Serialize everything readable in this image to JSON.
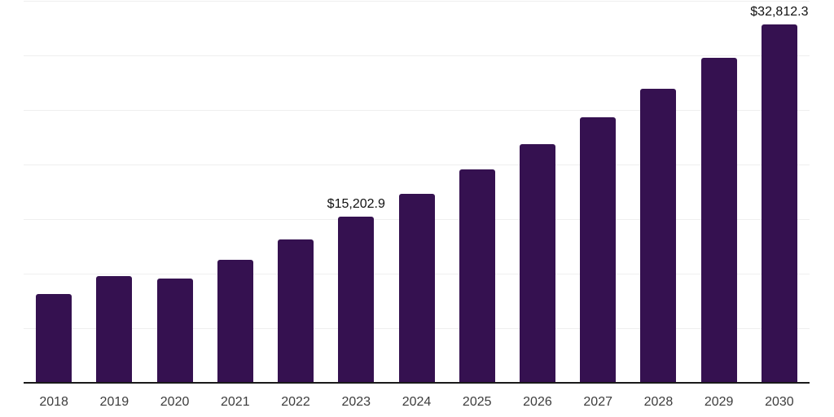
{
  "chart_data": {
    "type": "bar",
    "title": "",
    "xlabel": "",
    "ylabel": "",
    "categories": [
      "2018",
      "2019",
      "2020",
      "2021",
      "2022",
      "2023",
      "2024",
      "2025",
      "2026",
      "2027",
      "2028",
      "2029",
      "2030"
    ],
    "values": [
      8100,
      9780,
      9550,
      11270,
      13170,
      15202.9,
      17310,
      19550,
      21830,
      24330,
      26940,
      29780,
      32812.3
    ],
    "point_labels": [
      "",
      "",
      "",
      "",
      "",
      "$15,202.9",
      "",
      "",
      "",
      "",
      "",
      "",
      "$32,812.3"
    ],
    "ylim": [
      0,
      35000
    ],
    "grid_step": 5000,
    "grid": true,
    "y_tick_labels_visible": false,
    "legend_position": "none",
    "colors": {
      "bar": "#351150",
      "value_label": "#111111",
      "tick_label": "#3d3d3d",
      "gridline": "#efefef",
      "axis_line": "#1a1a1a",
      "background": "#ffffff"
    }
  }
}
